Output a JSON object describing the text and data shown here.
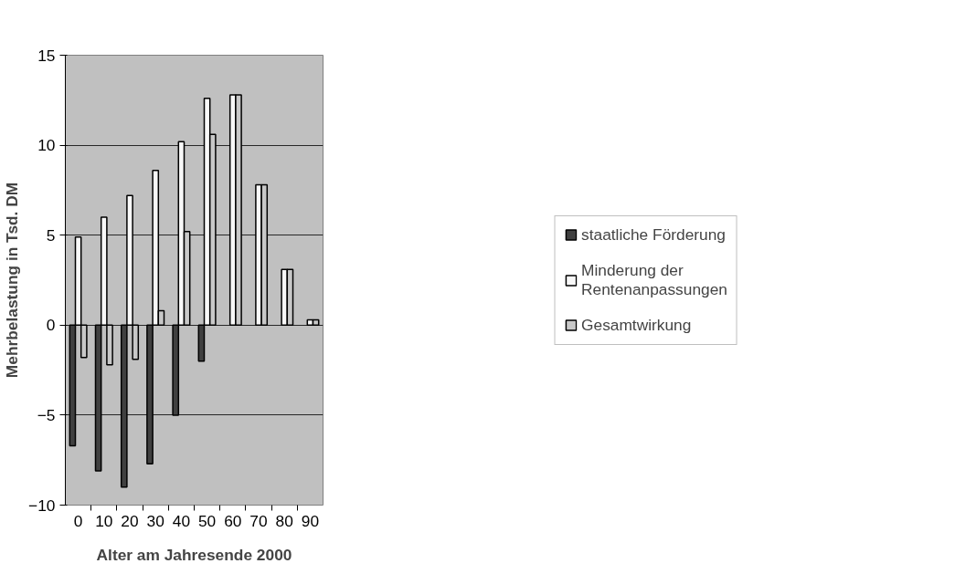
{
  "chart_data": {
    "type": "bar",
    "xlabel": "Alter am Jahresende 2000",
    "ylabel": "Mehrbelastung in Tsd. DM",
    "categories": [
      "0",
      "10",
      "20",
      "30",
      "40",
      "50",
      "60",
      "70",
      "80",
      "90"
    ],
    "series": [
      {
        "name": "staatliche Förderung",
        "color": "#404040",
        "values": [
          -6.7,
          -8.1,
          -9.0,
          -7.7,
          -5.0,
          -2.0,
          null,
          null,
          null,
          null
        ]
      },
      {
        "name": "Minderung der Rentenanpassungen",
        "color": "#f8f8f8",
        "values": [
          4.9,
          6.0,
          7.2,
          8.6,
          10.2,
          12.6,
          12.8,
          7.8,
          3.1,
          0.3
        ]
      },
      {
        "name": "Gesamtwirkung",
        "color": "#c8c8c8",
        "values": [
          -1.8,
          -2.2,
          -1.9,
          0.8,
          5.2,
          10.6,
          12.8,
          7.8,
          3.1,
          0.3
        ]
      }
    ],
    "ylim": [
      -10,
      15
    ],
    "yticks": [
      -10,
      -5,
      0,
      5,
      10,
      15
    ],
    "grid": "y",
    "legend": "right"
  }
}
